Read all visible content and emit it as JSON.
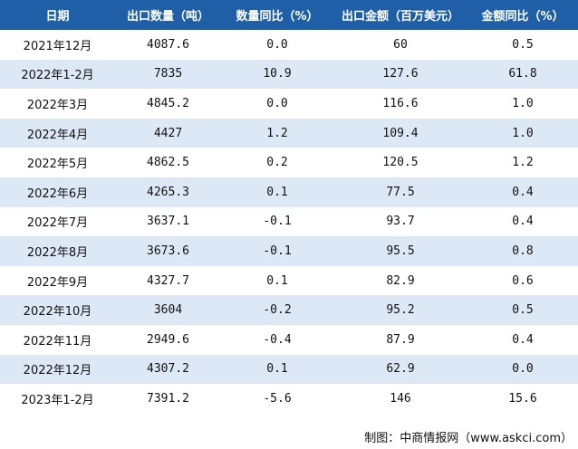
{
  "table": {
    "headers": [
      "日期",
      "出口数量（吨）",
      "数量同比（%）",
      "出口金额（百万美元）",
      "金额同比（%）"
    ],
    "rows": [
      [
        "2021年12月",
        "4087.6",
        "0.0",
        "60",
        "0.5"
      ],
      [
        "2022年1-2月",
        "7835",
        "10.9",
        "127.6",
        "61.8"
      ],
      [
        "2022年3月",
        "4845.2",
        "0.0",
        "116.6",
        "1.0"
      ],
      [
        "2022年4月",
        "4427",
        "1.2",
        "109.4",
        "1.0"
      ],
      [
        "2022年5月",
        "4862.5",
        "0.2",
        "120.5",
        "1.2"
      ],
      [
        "2022年6月",
        "4265.3",
        "0.1",
        "77.5",
        "0.4"
      ],
      [
        "2022年7月",
        "3637.1",
        "-0.1",
        "93.7",
        "0.4"
      ],
      [
        "2022年8月",
        "3673.6",
        "-0.1",
        "95.5",
        "0.8"
      ],
      [
        "2022年9月",
        "4327.7",
        "0.1",
        "82.9",
        "0.6"
      ],
      [
        "2022年10月",
        "3604",
        "-0.2",
        "95.2",
        "0.5"
      ],
      [
        "2022年11月",
        "2949.6",
        "-0.4",
        "87.9",
        "0.4"
      ],
      [
        "2022年12月",
        "4307.2",
        "0.1",
        "62.9",
        "0.0"
      ],
      [
        "2023年1-2月",
        "7391.2",
        "-5.6",
        "146",
        "15.6"
      ]
    ]
  },
  "source": "制图：中商情报网（www.askci.com）",
  "colors": {
    "header_bg": "#1f5fa8",
    "row_alt": "#dde8f6"
  }
}
